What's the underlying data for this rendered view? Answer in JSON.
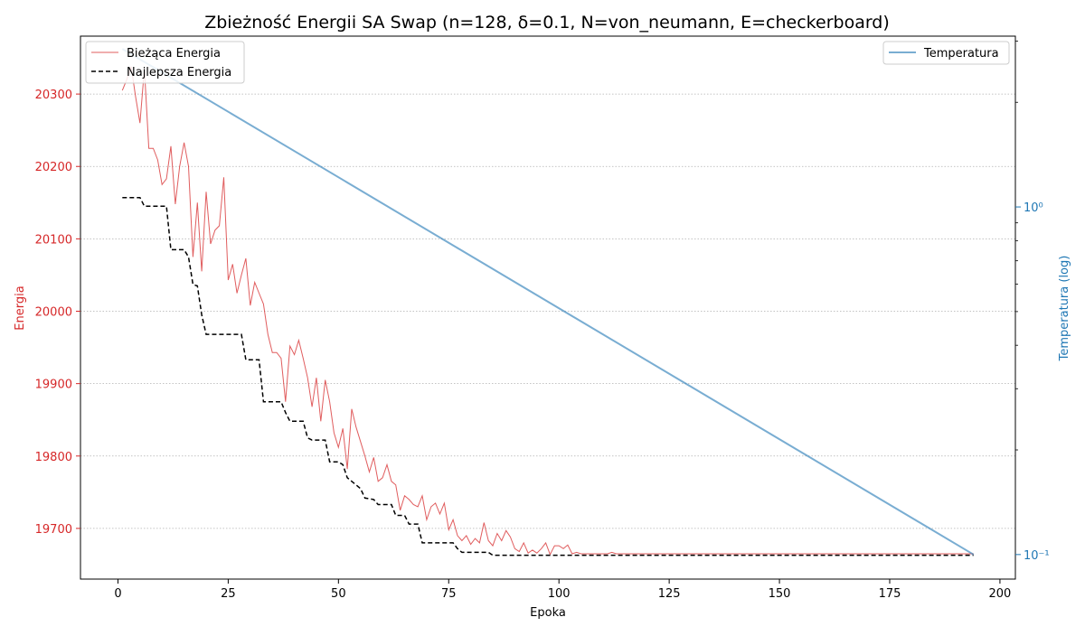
{
  "chart_data": {
    "type": "line",
    "title": "Zbieżność Energii SA Swap (n=128, δ=0.1, N=von_neumann, E=checkerboard)",
    "xlabel": "Epoka",
    "ylabel_left": "Energia",
    "ylabel_right": "Temperatura (log)",
    "xlim": [
      -8.5,
      203.5
    ],
    "ylim_left": [
      19630,
      20380
    ],
    "ylim_right_log": [
      0.085,
      3.1
    ],
    "right_scale": "log",
    "x_ticks": [
      0,
      25,
      50,
      75,
      100,
      125,
      150,
      175,
      200
    ],
    "y_ticks_left": [
      19700,
      19800,
      19900,
      20000,
      20100,
      20200,
      20300
    ],
    "y_ticks_right_major": [
      0.1,
      1
    ],
    "y_ticks_right_major_labels": [
      "10⁻¹",
      "10⁰"
    ],
    "y_ticks_right_minor": [
      0.2,
      0.3,
      0.4,
      0.5,
      0.6,
      0.7,
      0.8,
      0.9,
      2,
      3
    ],
    "grid": "horizontal-dotted",
    "colors": {
      "current": "#d62728",
      "best": "#000000",
      "temperature": "#1f77b4",
      "left_axis": "#d62728",
      "right_axis": "#1f77b4"
    },
    "legend_left": {
      "placement": "top-left",
      "entries": [
        "Bieżąca Energia",
        "Najlepsza Energia"
      ]
    },
    "legend_right": {
      "placement": "top-right",
      "entries": [
        "Temperatura"
      ]
    },
    "series": [
      {
        "name": "Bieżąca Energia",
        "x": [
          1,
          2,
          3,
          4,
          5,
          6,
          7,
          8,
          9,
          10,
          11,
          12,
          13,
          14,
          15,
          16,
          17,
          18,
          19,
          20,
          21,
          22,
          23,
          24,
          25,
          26,
          27,
          28,
          29,
          30,
          31,
          32,
          33,
          34,
          35,
          36,
          37,
          38,
          39,
          40,
          41,
          42,
          43,
          44,
          45,
          46,
          47,
          48,
          49,
          50,
          51,
          52,
          53,
          54,
          55,
          56,
          57,
          58,
          59,
          60,
          61,
          62,
          63,
          64,
          65,
          66,
          67,
          68,
          69,
          70,
          71,
          72,
          73,
          74,
          75,
          76,
          77,
          78,
          79,
          80,
          81,
          82,
          83,
          84,
          85,
          86,
          87,
          88,
          89,
          90,
          91,
          92,
          93,
          94,
          95,
          96,
          97,
          98,
          99,
          100,
          101,
          102,
          103,
          104,
          105,
          106,
          107,
          108,
          109,
          110,
          111,
          112,
          113,
          114,
          194
        ],
        "values": [
          20305,
          20320,
          20338,
          20296,
          20260,
          20335,
          20225,
          20225,
          20209,
          20175,
          20183,
          20228,
          20148,
          20200,
          20233,
          20200,
          20075,
          20150,
          20055,
          20165,
          20093,
          20112,
          20118,
          20185,
          20043,
          20065,
          20025,
          20050,
          20073,
          20008,
          20040,
          20025,
          20010,
          19968,
          19943,
          19943,
          19935,
          19875,
          19952,
          19940,
          19960,
          19935,
          19908,
          19868,
          19908,
          19848,
          19905,
          19875,
          19832,
          19812,
          19838,
          19782,
          19865,
          19840,
          19820,
          19800,
          19778,
          19798,
          19765,
          19770,
          19788,
          19765,
          19760,
          19725,
          19745,
          19740,
          19733,
          19730,
          19745,
          19712,
          19730,
          19735,
          19720,
          19735,
          19698,
          19712,
          19690,
          19683,
          19690,
          19678,
          19686,
          19680,
          19708,
          19683,
          19676,
          19693,
          19683,
          19697,
          19688,
          19672,
          19668,
          19680,
          19666,
          19670,
          19666,
          19672,
          19680,
          19664,
          19676,
          19676,
          19672,
          19677,
          19665,
          19667,
          19665,
          19665,
          19665,
          19665,
          19665,
          19665,
          19665,
          19667,
          19665,
          19665,
          19665
        ]
      },
      {
        "name": "Najlepsza Energia",
        "x": [
          1,
          5,
          6,
          11,
          12,
          15,
          16,
          17,
          18,
          19,
          20,
          28,
          29,
          32,
          33,
          37,
          38,
          39,
          42,
          43,
          44,
          47,
          48,
          50,
          51,
          52,
          53,
          55,
          56,
          58,
          59,
          62,
          63,
          65,
          66,
          68,
          69,
          76,
          77,
          78,
          84,
          85,
          194
        ],
        "values": [
          20157,
          20157,
          20145,
          20145,
          20085,
          20085,
          20075,
          20037,
          20035,
          19995,
          19968,
          19968,
          19933,
          19933,
          19875,
          19875,
          19860,
          19848,
          19848,
          19825,
          19822,
          19822,
          19792,
          19792,
          19788,
          19770,
          19765,
          19755,
          19742,
          19740,
          19733,
          19733,
          19718,
          19718,
          19706,
          19706,
          19680,
          19680,
          19672,
          19667,
          19667,
          19663,
          19663
        ]
      },
      {
        "name": "Temperatura",
        "x": [
          1,
          194
        ],
        "values": [
          2.85,
          0.1
        ]
      }
    ]
  }
}
